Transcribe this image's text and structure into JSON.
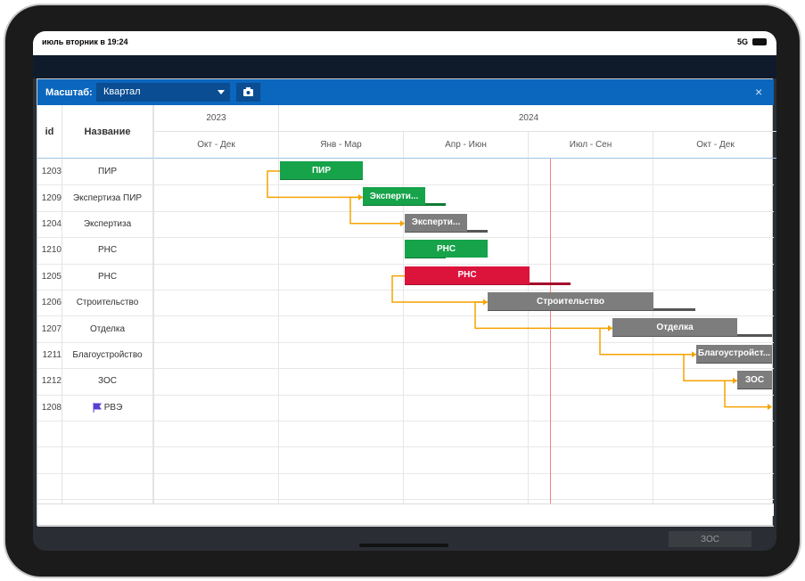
{
  "status_bar": {
    "time": "июль вторник в 19:24",
    "network": "5G"
  },
  "toolbar": {
    "scale_label": "Масштаб:",
    "scale_value": "Квартал",
    "close": "×"
  },
  "table": {
    "headers": {
      "id": "id",
      "name": "Название"
    },
    "rows": [
      {
        "id": "1203",
        "name": "ПИР",
        "bar": "ПИР"
      },
      {
        "id": "1209",
        "name": "Экспертиза ПИР",
        "bar": "Эксперти..."
      },
      {
        "id": "1204",
        "name": "Экспертиза",
        "bar": "Эксперти..."
      },
      {
        "id": "1210",
        "name": "РНС",
        "bar": "РНС"
      },
      {
        "id": "1205",
        "name": "РНС",
        "bar": "РНС"
      },
      {
        "id": "1206",
        "name": "Строительство",
        "bar": "Строительство"
      },
      {
        "id": "1207",
        "name": "Отделка",
        "bar": "Отделка"
      },
      {
        "id": "1211",
        "name": "Благоустройство",
        "bar": "Благоустройст..."
      },
      {
        "id": "1212",
        "name": "ЗОС",
        "bar": "ЗОС"
      },
      {
        "id": "1208",
        "name": "РВЭ"
      }
    ]
  },
  "timeline": {
    "years": [
      "2023",
      "2024"
    ],
    "quarters": [
      "Окт - Дек",
      "Янв - Мар",
      "Апр - Июн",
      "Июл - Сен",
      "Окт - Дек"
    ]
  },
  "background": {
    "bar": "ЗОС"
  }
}
